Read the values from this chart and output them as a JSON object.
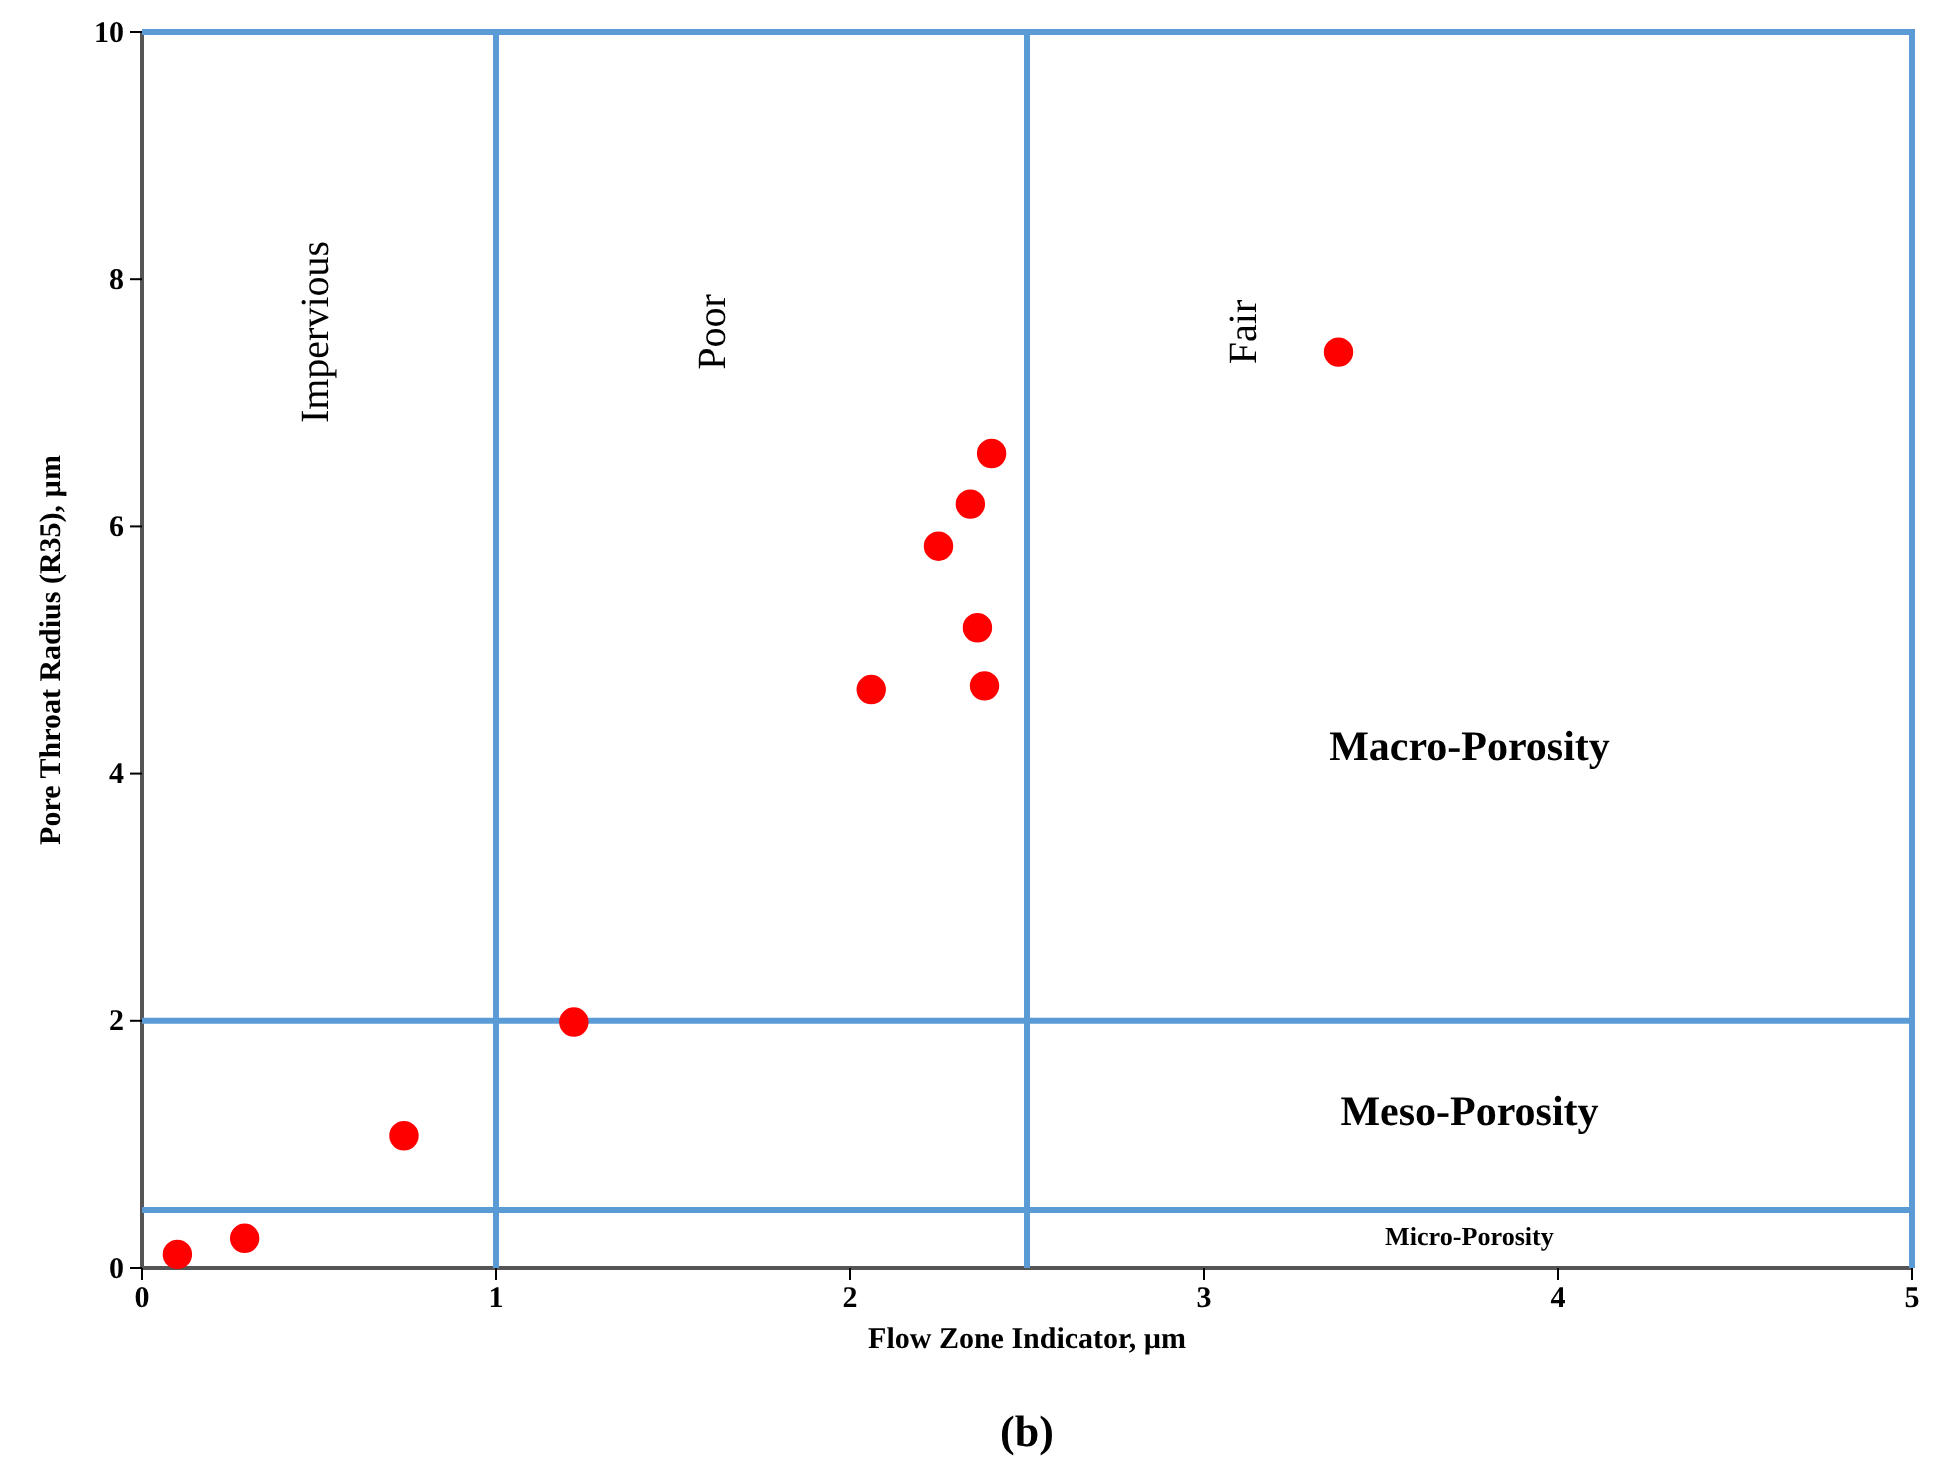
{
  "chart_data": {
    "type": "scatter",
    "xlabel": "Flow Zone Indicator, µm",
    "ylabel": "Pore Throat Radius (R35), µm",
    "x": [
      0.1,
      0.29,
      0.74,
      1.22,
      2.06,
      2.25,
      2.34,
      2.4,
      2.36,
      2.38,
      3.38
    ],
    "values": [
      0.11,
      0.24,
      1.07,
      1.99,
      4.68,
      5.84,
      6.18,
      6.59,
      5.18,
      4.71,
      7.41
    ],
    "color": "#ff0000",
    "marker": "circle",
    "xlim": [
      0,
      5
    ],
    "xticks": [
      0,
      1,
      2,
      3,
      4,
      5
    ],
    "ylim": [
      0,
      10
    ],
    "yticks": [
      0,
      2,
      4,
      6,
      8,
      10
    ],
    "grid": false,
    "ref_lines": [
      {
        "axis": "x",
        "value": 1,
        "color": "#5b9bd5"
      },
      {
        "axis": "x",
        "value": 2.5,
        "color": "#5b9bd5"
      },
      {
        "axis": "y",
        "value": 0.47,
        "color": "#5b9bd5"
      },
      {
        "axis": "y",
        "value": 2,
        "color": "#5b9bd5"
      }
    ],
    "annotations": [
      "Impervious",
      "Poor",
      "Fair",
      "Macro-Porosity",
      "Meso-Porosity",
      "Micro-Porosity",
      "(b)"
    ]
  }
}
